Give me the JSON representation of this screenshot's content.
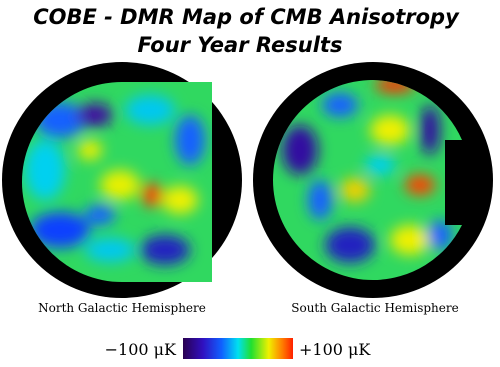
{
  "title": "COBE - DMR Map of CMB Anisotropy",
  "subtitle": "Four Year Results",
  "maps": [
    {
      "label": "North Galactic Hemisphere"
    },
    {
      "label": "South Galactic Hemisphere"
    }
  ],
  "colorbar": {
    "min_label": "−100 μK",
    "max_label": "+100 μK"
  }
}
